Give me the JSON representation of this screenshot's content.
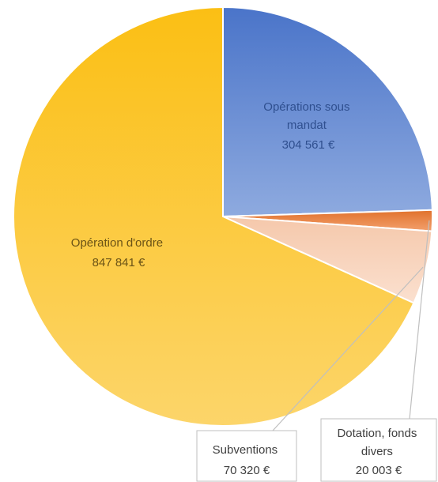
{
  "chart_data": {
    "type": "pie",
    "start_angle_deg": 0,
    "direction": "clockwise",
    "slices": [
      {
        "label_line1": "Opérations sous",
        "label_line2": "mandat",
        "value_text": "304 561 €",
        "value": 304561,
        "color": "#4a74c9",
        "color_light": "#8eaadf",
        "label_color": "#2f4f8f"
      },
      {
        "label_line1": "Dotation, fonds",
        "label_line2": "divers",
        "value_text": "20 003 €",
        "value": 20003,
        "color": "#e0712b",
        "color_light": "#f3a06d",
        "label_color": "#404040"
      },
      {
        "label_line1": "Subventions",
        "label_line2": "",
        "value_text": "70 320 €",
        "value": 70320,
        "color": "#f5c8ab",
        "color_light": "#fbe0cf",
        "label_color": "#404040"
      },
      {
        "label_line1": "Opération d'ordre",
        "label_line2": "",
        "value_text": "847 841 €",
        "value": 847841,
        "color": "#fbbf14",
        "color_light": "#fcd56a",
        "label_color": "#6b5316"
      }
    ]
  }
}
